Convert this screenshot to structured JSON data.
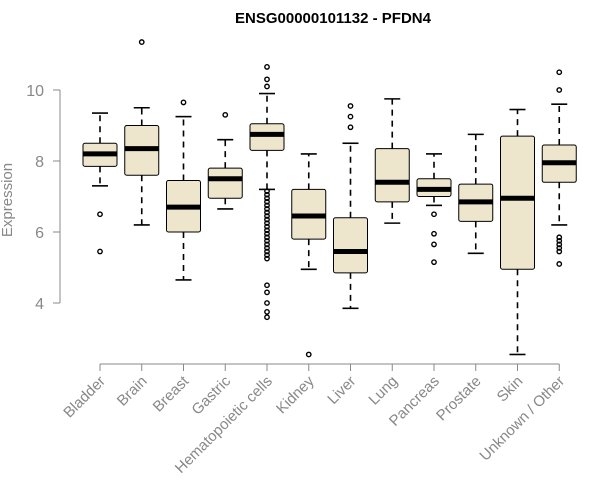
{
  "chart_data": {
    "type": "boxplot",
    "title": "ENSG00000101132 - PFDN4",
    "xlabel": "",
    "ylabel": "Expression",
    "ylim": [
      2.0,
      11.8
    ],
    "yticks": [
      4,
      6,
      8,
      10
    ],
    "grid": false,
    "colors": {
      "box_fill": "#ede6cd",
      "box_stroke": "#000000",
      "axis": "#888888",
      "title": "#000000"
    },
    "categories": [
      "Bladder",
      "Brain",
      "Breast",
      "Gastric",
      "Hematopoietic cells",
      "Kidney",
      "Liver",
      "Lung",
      "Pancreas",
      "Prostate",
      "Skin",
      "Unknown / Other"
    ],
    "series": [
      {
        "name": "Bladder",
        "whisker_low": 7.3,
        "q1": 7.85,
        "median": 8.2,
        "q3": 8.5,
        "whisker_high": 9.35,
        "outliers": [
          6.5,
          5.45
        ]
      },
      {
        "name": "Brain",
        "whisker_low": 6.2,
        "q1": 7.6,
        "median": 8.35,
        "q3": 9.0,
        "whisker_high": 9.5,
        "outliers": [
          11.35
        ]
      },
      {
        "name": "Breast",
        "whisker_low": 4.65,
        "q1": 6.0,
        "median": 6.7,
        "q3": 7.45,
        "whisker_high": 9.25,
        "outliers": [
          9.65
        ]
      },
      {
        "name": "Gastric",
        "whisker_low": 6.65,
        "q1": 6.95,
        "median": 7.5,
        "q3": 7.8,
        "whisker_high": 8.6,
        "outliers": [
          9.3
        ]
      },
      {
        "name": "Hematopoietic cells",
        "whisker_low": 7.2,
        "q1": 8.3,
        "median": 8.75,
        "q3": 9.05,
        "whisker_high": 9.9,
        "outliers": [
          10.65,
          10.3,
          10.1,
          7.15,
          7.05,
          6.95,
          6.85,
          6.75,
          6.65,
          6.55,
          6.45,
          6.35,
          6.25,
          6.15,
          6.05,
          5.95,
          5.85,
          5.75,
          5.65,
          5.55,
          5.45,
          5.35,
          5.25,
          4.5,
          4.3,
          4.0,
          3.75,
          3.6
        ]
      },
      {
        "name": "Kidney",
        "whisker_low": 4.95,
        "q1": 5.8,
        "median": 6.45,
        "q3": 7.2,
        "whisker_high": 8.2,
        "outliers": [
          2.55
        ]
      },
      {
        "name": "Liver",
        "whisker_low": 3.85,
        "q1": 4.85,
        "median": 5.45,
        "q3": 6.4,
        "whisker_high": 8.5,
        "outliers": [
          9.55,
          9.25,
          8.95
        ]
      },
      {
        "name": "Lung",
        "whisker_low": 6.25,
        "q1": 6.85,
        "median": 7.4,
        "q3": 8.35,
        "whisker_high": 9.75,
        "outliers": []
      },
      {
        "name": "Pancreas",
        "whisker_low": 6.75,
        "q1": 7.0,
        "median": 7.2,
        "q3": 7.5,
        "whisker_high": 8.2,
        "outliers": [
          6.5,
          5.95,
          5.65,
          5.15
        ]
      },
      {
        "name": "Prostate",
        "whisker_low": 5.4,
        "q1": 6.3,
        "median": 6.85,
        "q3": 7.35,
        "whisker_high": 8.75,
        "outliers": []
      },
      {
        "name": "Skin",
        "whisker_low": 2.55,
        "q1": 4.95,
        "median": 6.95,
        "q3": 8.7,
        "whisker_high": 9.45,
        "outliers": []
      },
      {
        "name": "Unknown / Other",
        "whisker_low": 6.2,
        "q1": 7.4,
        "median": 7.95,
        "q3": 8.45,
        "whisker_high": 9.6,
        "outliers": [
          10.5,
          10.0,
          5.85,
          5.75,
          5.65,
          5.55,
          5.45,
          5.1
        ]
      }
    ]
  }
}
